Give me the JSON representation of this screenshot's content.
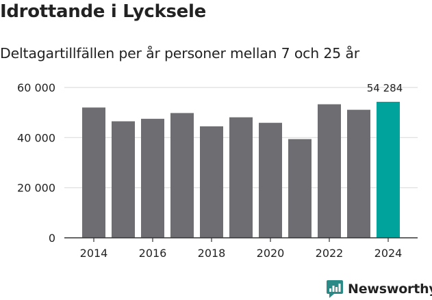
{
  "title": "Idrottande i Lycksele",
  "subtitle": "Deltagartillfällen per år personer mellan 7 och 25 år",
  "brand": "Newsworthy",
  "colors": {
    "bar": "#6e6d72",
    "highlight": "#00a39b",
    "grid": "#dddddd",
    "axis": "#333333",
    "text": "#222222",
    "brand": "#2c8a86"
  },
  "chart_data": {
    "type": "bar",
    "categories": [
      "2014",
      "2015",
      "2016",
      "2017",
      "2018",
      "2019",
      "2020",
      "2021",
      "2022",
      "2023",
      "2024"
    ],
    "values": [
      52000,
      46500,
      47500,
      49800,
      44500,
      48100,
      45900,
      39400,
      53300,
      51100,
      54284
    ],
    "highlight_index": 10,
    "data_labels": [
      {
        "index": 10,
        "text": "54 284"
      }
    ],
    "xtick_labels": [
      "2014",
      "2016",
      "2018",
      "2020",
      "2022",
      "2024"
    ],
    "ytick_values": [
      0,
      20000,
      40000,
      60000
    ],
    "ytick_labels": [
      "0",
      "20 000",
      "40 000",
      "60 000"
    ],
    "ylim": [
      0,
      60000
    ],
    "grid": true,
    "legend": false,
    "xlabel": "",
    "ylabel": ""
  }
}
